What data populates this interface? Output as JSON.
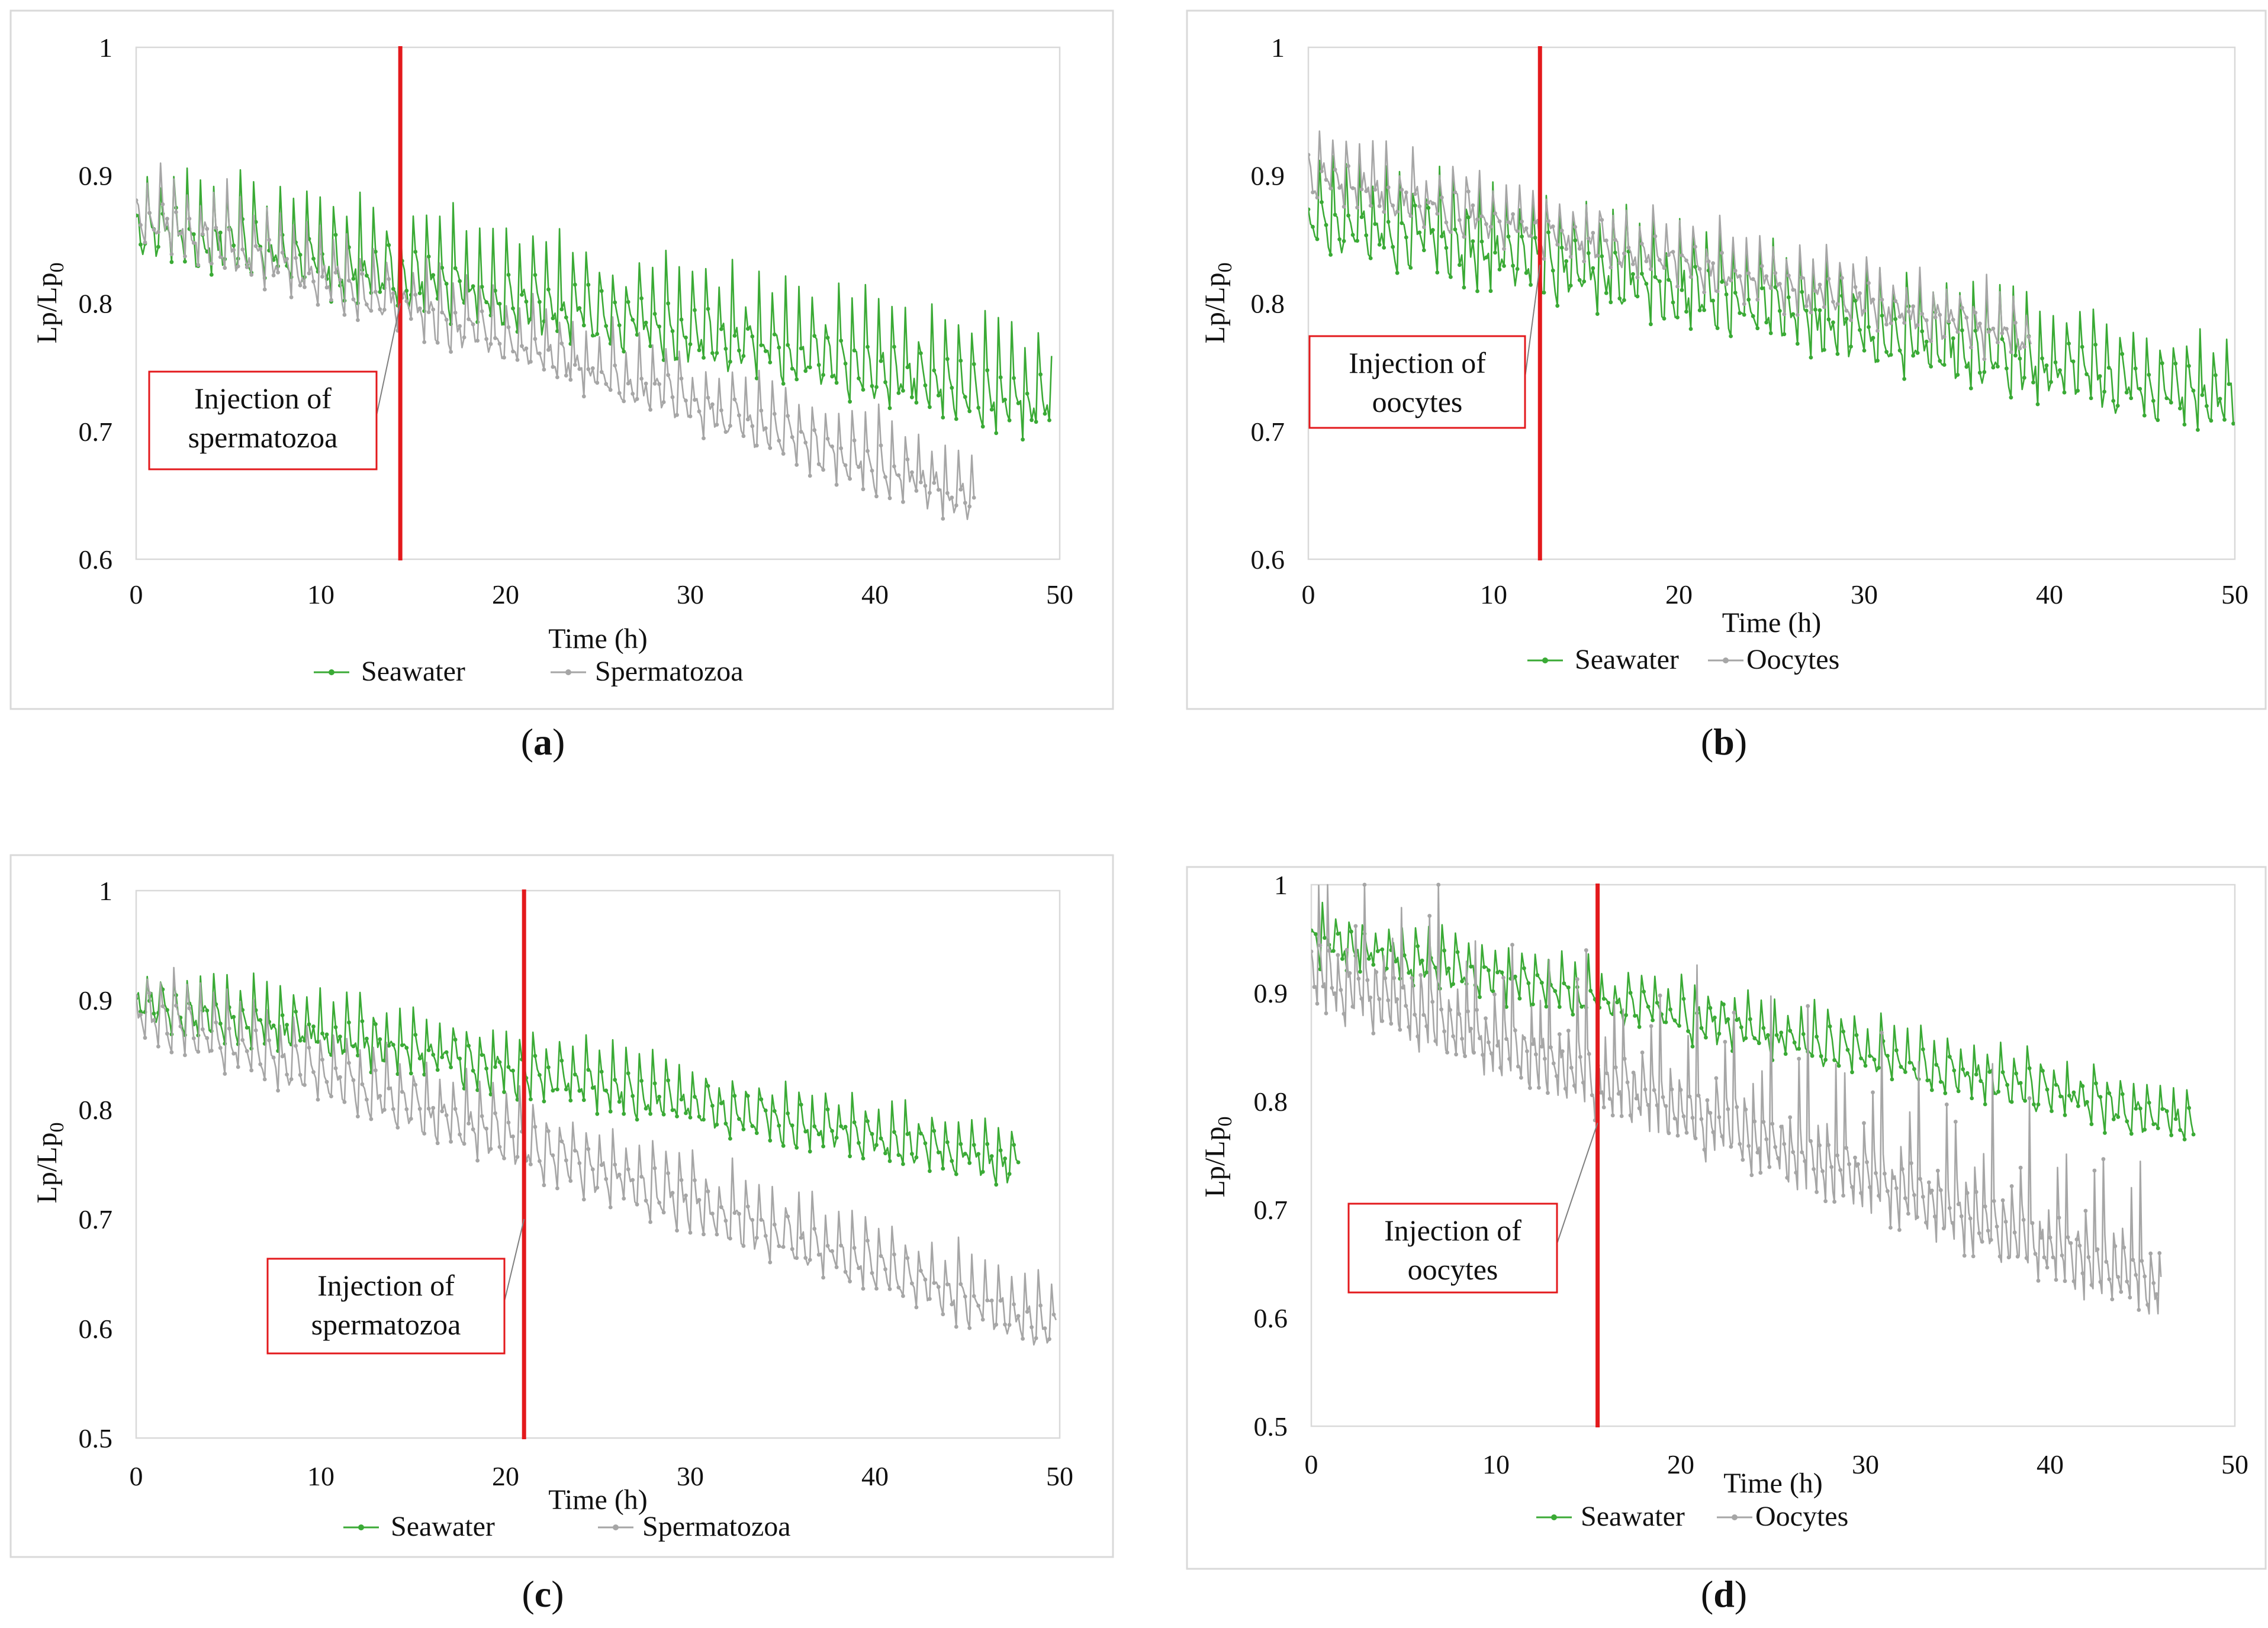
{
  "chart_data": [
    {
      "id": "a",
      "type": "line",
      "caption_open": "(",
      "caption_letter": "a",
      "caption_close": ")",
      "xlabel": "Time (h)",
      "ylabel_main": "Lp/Lp",
      "ylabel_sub": "0",
      "xlim": [
        0,
        50
      ],
      "ylim": [
        0.6,
        1.0
      ],
      "xticks": [
        0,
        10,
        20,
        30,
        40,
        50
      ],
      "yticks": [
        0.6,
        0.7,
        0.8,
        0.9,
        1.0
      ],
      "ytick_labels": [
        "0.6",
        "0.7",
        "0.8",
        "0.9",
        "1"
      ],
      "injection_time": 14.3,
      "annotation_lines": [
        "Injection of",
        "spermatozoa"
      ],
      "annotation_anchor": {
        "x": 14.3,
        "y": 0.8
      },
      "series": [
        {
          "name": "Seawater",
          "color": "#3aaa35",
          "x_start": 0,
          "x_end": 49.6,
          "trend_start": 0.86,
          "trend_end": 0.72,
          "period_h": 0.72,
          "amplitude": 0.085,
          "noise": 0.012,
          "seed": 11,
          "sample_step_h": 0.12,
          "clip": [
            0.6,
            1.0
          ]
        },
        {
          "name": "Spermatozoa",
          "color": "#a6a6a6",
          "x_start": 0,
          "x_end": 45.4,
          "trend_start": 0.87,
          "trend_end": 0.645,
          "period_h": 0.72,
          "amplitude": 0.065,
          "noise": 0.01,
          "seed": 23,
          "sample_step_h": 0.12,
          "clip": [
            0.6,
            1.0
          ]
        }
      ]
    },
    {
      "id": "b",
      "type": "line",
      "caption_open": "(",
      "caption_letter": "b",
      "caption_close": ")",
      "xlabel": "Time (h)",
      "ylabel_main": "Lp/Lp",
      "ylabel_sub": "0",
      "xlim": [
        0,
        50
      ],
      "ylim": [
        0.6,
        1.0
      ],
      "xticks": [
        0,
        10,
        20,
        30,
        40,
        50
      ],
      "yticks": [
        0.6,
        0.7,
        0.8,
        0.9,
        1.0
      ],
      "ytick_labels": [
        "0.6",
        "0.7",
        "0.8",
        "0.9",
        "1"
      ],
      "injection_time": 12.5,
      "annotation_lines": [
        "Injection of",
        "oocytes"
      ],
      "annotation_anchor": {
        "x": 12.5,
        "y": 0.83
      },
      "series": [
        {
          "name": "Seawater",
          "color": "#3aaa35",
          "x_start": 0,
          "x_end": 50,
          "trend_start": 0.87,
          "trend_end": 0.72,
          "period_h": 0.72,
          "amplitude": 0.09,
          "noise": 0.013,
          "seed": 37,
          "sample_step_h": 0.12,
          "clip": [
            0.6,
            1.0
          ]
        },
        {
          "name": "Oocytes",
          "color": "#a6a6a6",
          "x_start": 0,
          "x_end": 39.0,
          "trend_start": 0.9,
          "trend_end": 0.77,
          "period_h": 0.72,
          "amplitude": 0.06,
          "noise": 0.01,
          "seed": 41,
          "sample_step_h": 0.12,
          "clip": [
            0.6,
            1.0
          ]
        }
      ]
    },
    {
      "id": "c",
      "type": "line",
      "caption_open": "(",
      "caption_letter": "c",
      "caption_close": ")",
      "xlabel": "Time (h)",
      "ylabel_main": "Lp/Lp",
      "ylabel_sub": "0",
      "xlim": [
        0,
        50
      ],
      "ylim": [
        0.5,
        1.0
      ],
      "xticks": [
        0,
        10,
        20,
        30,
        40,
        50
      ],
      "yticks": [
        0.5,
        0.6,
        0.7,
        0.8,
        0.9,
        1.0
      ],
      "ytick_labels": [
        "0.5",
        "0.6",
        "0.7",
        "0.8",
        "0.9",
        "1"
      ],
      "injection_time": 21.0,
      "annotation_lines": [
        "Injection of",
        "spermatozoa"
      ],
      "annotation_anchor": {
        "x": 21.0,
        "y": 0.7
      },
      "series": [
        {
          "name": "Seawater",
          "color": "#3aaa35",
          "x_start": 0,
          "x_end": 47.8,
          "trend_start": 0.9,
          "trend_end": 0.75,
          "period_h": 0.72,
          "amplitude": 0.07,
          "noise": 0.01,
          "seed": 53,
          "sample_step_h": 0.12,
          "clip": [
            0.5,
            1.0
          ]
        },
        {
          "name": "Spermatozoa",
          "color": "#a6a6a6",
          "x_start": 0,
          "x_end": 49.8,
          "trend_start": 0.89,
          "trend_end": 0.6,
          "period_h": 0.72,
          "amplitude": 0.09,
          "noise": 0.01,
          "seed": 61,
          "sample_step_h": 0.12,
          "clip": [
            0.5,
            1.0
          ]
        }
      ]
    },
    {
      "id": "d",
      "type": "line",
      "caption_open": "(",
      "caption_letter": "d",
      "caption_close": ")",
      "xlabel": "Time (h)",
      "ylabel_main": "Lp/Lp",
      "ylabel_sub": "0",
      "xlim": [
        0,
        50
      ],
      "ylim": [
        0.5,
        1.0
      ],
      "xticks": [
        0,
        10,
        20,
        30,
        40,
        50
      ],
      "yticks": [
        0.5,
        0.6,
        0.7,
        0.8,
        0.9,
        1.0
      ],
      "ytick_labels": [
        "0.5",
        "0.6",
        "0.7",
        "0.8",
        "0.9",
        "1"
      ],
      "injection_time": 15.5,
      "annotation_lines": [
        "Injection of",
        "oocytes"
      ],
      "annotation_anchor": {
        "x": 15.5,
        "y": 0.78
      },
      "series": [
        {
          "name": "Seawater",
          "color": "#3aaa35",
          "x_start": 0,
          "x_end": 47.8,
          "trend_start": 0.95,
          "trend_end": 0.78,
          "period_h": 0.72,
          "amplitude": 0.07,
          "noise": 0.01,
          "seed": 71,
          "sample_step_h": 0.12,
          "clip": [
            0.5,
            1.0
          ]
        },
        {
          "name": "Oocytes",
          "color": "#a6a6a6",
          "x_start": 0,
          "x_end": 46.0,
          "trend_start": 0.92,
          "trend_end": 0.63,
          "period_h": 0.5,
          "amplitude": 0.12,
          "noise": 0.01,
          "seed": 83,
          "sample_step_h": 0.08,
          "clip": [
            0.5,
            1.0
          ]
        }
      ]
    }
  ]
}
